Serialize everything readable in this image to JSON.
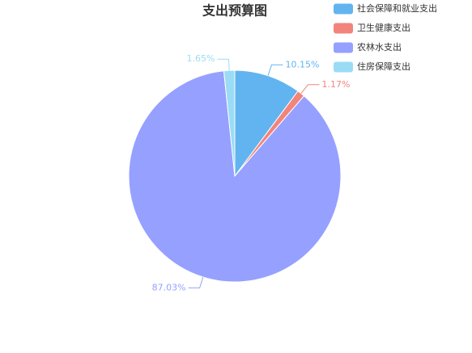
{
  "chart_data": {
    "type": "pie",
    "title": "支出预算图",
    "categories": [
      "社会保障和就业支出",
      "卫生健康支出",
      "农林水支出",
      "住房保障支出"
    ],
    "values": [
      10.15,
      1.17,
      87.03,
      1.65
    ],
    "value_labels": [
      "10.15%",
      "1.17%",
      "87.03%",
      "1.65%"
    ],
    "colors": [
      "#62b4f0",
      "#f2847c",
      "#96a0ff",
      "#9adcf5"
    ],
    "legend": "top-right"
  }
}
